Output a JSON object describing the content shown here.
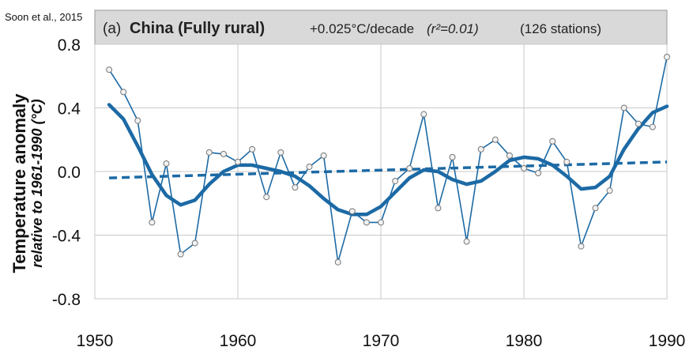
{
  "source_label": "Soon et al., 2015",
  "chart_data": {
    "type": "line",
    "panel_label": "(a)",
    "title": "China (Fully rural)",
    "trend_text": "+0.025°C/decade",
    "r2_text": "(r²=0.01)",
    "stations_text": "(126 stations)",
    "ylabel": "Temperature anomaly",
    "ylabel_sub": "relative to 1961-1990 (°C)",
    "xlim": [
      1950,
      1990
    ],
    "ylim": [
      -0.8,
      0.8
    ],
    "x_ticks": [
      "1950",
      "1960",
      "1970",
      "1980",
      "1990"
    ],
    "y_ticks": [
      "0.8",
      "0.4",
      "0.0",
      "-0.4",
      "-0.8"
    ],
    "grid": true,
    "colors": {
      "line": "#1c6aa5",
      "header_bg": "#d9d9d9",
      "grid": "#c9c9c9"
    },
    "series": [
      {
        "kind": "annual",
        "x": [
          1951,
          1952,
          1953,
          1954,
          1955,
          1956,
          1957,
          1958,
          1959,
          1960,
          1961,
          1962,
          1963,
          1964,
          1965,
          1966,
          1967,
          1968,
          1969,
          1970,
          1971,
          1972,
          1973,
          1974,
          1975,
          1976,
          1977,
          1978,
          1979,
          1980,
          1981,
          1982,
          1983,
          1984,
          1985,
          1986,
          1987,
          1988,
          1989,
          1990
        ],
        "values": [
          0.64,
          0.5,
          0.32,
          -0.32,
          0.05,
          -0.52,
          -0.45,
          0.12,
          0.11,
          0.06,
          0.14,
          -0.16,
          0.12,
          -0.1,
          0.03,
          0.1,
          -0.57,
          -0.25,
          -0.32,
          -0.32,
          -0.06,
          0.02,
          0.36,
          -0.23,
          0.09,
          -0.44,
          0.14,
          0.2,
          0.1,
          0.02,
          -0.01,
          0.19,
          0.06,
          -0.47,
          -0.23,
          -0.12,
          0.4,
          0.3,
          0.28,
          0.72
        ]
      },
      {
        "kind": "smoothed",
        "x": [
          1951,
          1952,
          1953,
          1954,
          1955,
          1956,
          1957,
          1958,
          1959,
          1960,
          1961,
          1962,
          1963,
          1964,
          1965,
          1966,
          1967,
          1968,
          1969,
          1970,
          1971,
          1972,
          1973,
          1974,
          1975,
          1976,
          1977,
          1978,
          1979,
          1980,
          1981,
          1982,
          1983,
          1984,
          1985,
          1986,
          1987,
          1988,
          1989,
          1990
        ],
        "values": [
          0.42,
          0.33,
          0.16,
          -0.02,
          -0.15,
          -0.21,
          -0.18,
          -0.08,
          0.0,
          0.04,
          0.04,
          0.02,
          0.0,
          -0.03,
          -0.09,
          -0.17,
          -0.24,
          -0.27,
          -0.27,
          -0.22,
          -0.13,
          -0.04,
          0.01,
          0.0,
          -0.05,
          -0.08,
          -0.06,
          0.0,
          0.07,
          0.09,
          0.08,
          0.04,
          -0.03,
          -0.11,
          -0.1,
          -0.03,
          0.14,
          0.27,
          0.37,
          0.41
        ]
      },
      {
        "kind": "trend",
        "x": [
          1951,
          1990
        ],
        "values": [
          -0.04,
          0.06
        ]
      }
    ]
  }
}
